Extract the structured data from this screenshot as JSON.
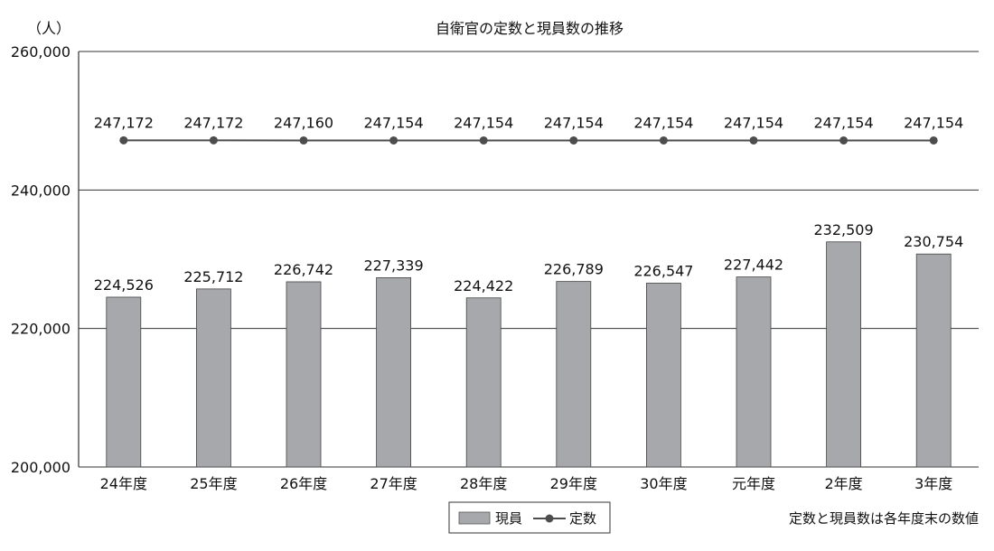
{
  "chart_data": {
    "type": "bar",
    "title": "自衛官の定数と現員数の推移",
    "yunit": "（人）",
    "categories": [
      "24年度",
      "25年度",
      "26年度",
      "27年度",
      "28年度",
      "29年度",
      "30年度",
      "元年度",
      "2年度",
      "3年度"
    ],
    "series": [
      {
        "name": "現員",
        "type": "bar",
        "color": "#a7a8ab",
        "values": [
          224526,
          225712,
          226742,
          227339,
          224422,
          226789,
          226547,
          227442,
          232509,
          230754
        ],
        "labels": [
          "224,526",
          "225,712",
          "226,742",
          "227,339",
          "224,422",
          "226,789",
          "226,547",
          "227,442",
          "232,509",
          "230,754"
        ]
      },
      {
        "name": "定数",
        "type": "line",
        "color": "#4d4d4d",
        "values": [
          247172,
          247172,
          247160,
          247154,
          247154,
          247154,
          247154,
          247154,
          247154,
          247154
        ],
        "labels": [
          "247,172",
          "247,172",
          "247,160",
          "247,154",
          "247,154",
          "247,154",
          "247,154",
          "247,154",
          "247,154",
          "247,154"
        ]
      }
    ],
    "ylim": [
      200000,
      260000
    ],
    "yticks": [
      200000,
      220000,
      240000,
      260000
    ],
    "ytick_labels": [
      "200,000",
      "220,000",
      "240,000",
      "260,000"
    ],
    "grid": true,
    "legend_position": "bottom-center",
    "note": "定数と現員数は各年度末の数値"
  }
}
